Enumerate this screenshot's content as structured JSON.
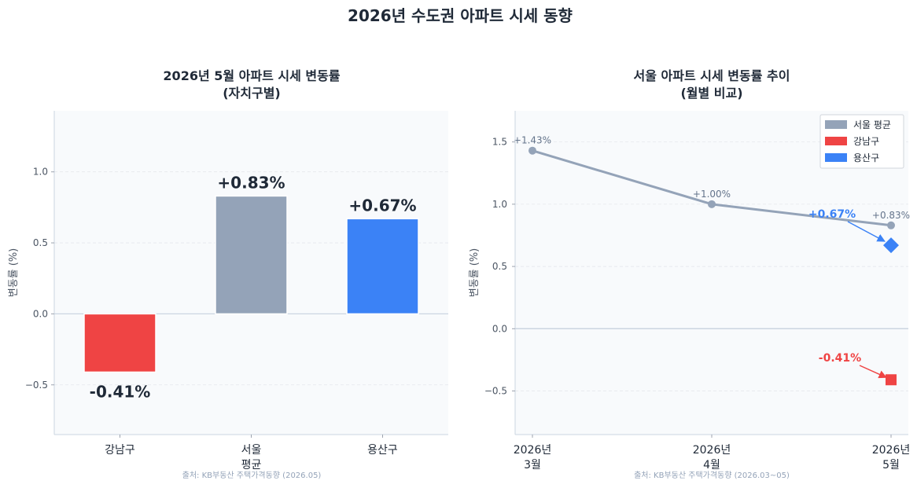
{
  "suptitle": "2026년 수도권 아파트 시세 동향",
  "charts": [
    {
      "type": "bar",
      "title": [
        "2026년 5월 아파트 시세 변동률",
        "(자치구별)"
      ],
      "ylabel": "변동률 (%)",
      "ylim": [
        -0.85,
        1.43
      ],
      "yticks": [
        -0.5,
        0.0,
        0.5,
        1.0
      ],
      "ytick_labels": [
        "−0.5",
        "0.0",
        "0.5",
        "1.0"
      ],
      "categories": [
        [
          "강남구"
        ],
        [
          "서울",
          "평균"
        ],
        [
          "용산구"
        ]
      ],
      "values": [
        -0.41,
        0.83,
        0.67
      ],
      "value_labels": [
        "-0.41%",
        "+0.83%",
        "+0.67%"
      ],
      "colors": [
        "#ef4444",
        "#94a3b8",
        "#3b82f6"
      ],
      "source": "출처: KB부동산 주택가격동향 (2026.05)"
    },
    {
      "type": "line",
      "title": [
        "서울 아파트 시세 변동률 추이",
        "(월별 비교)"
      ],
      "ylabel": "변동률 (%)",
      "ylim": [
        -0.85,
        1.75
      ],
      "yticks": [
        -0.5,
        0.0,
        0.5,
        1.0,
        1.5
      ],
      "ytick_labels": [
        "−0.5",
        "0.0",
        "0.5",
        "1.0",
        "1.5"
      ],
      "x": [
        [
          "2026년",
          "3월"
        ],
        [
          "2026년",
          "4월"
        ],
        [
          "2026년",
          "5월"
        ]
      ],
      "series": [
        {
          "name": "서울 평균",
          "values": [
            1.43,
            1.0,
            0.83
          ],
          "labels": [
            "+1.43%",
            "+1.00%",
            "+0.83%"
          ],
          "color": "#94a3b8",
          "marker": "circle"
        },
        {
          "name": "강남구",
          "values": [
            null,
            null,
            -0.41
          ],
          "annotation": "-0.41%",
          "color": "#ef4444",
          "marker": "square"
        },
        {
          "name": "용산구",
          "values": [
            null,
            null,
            0.67
          ],
          "annotation": "+0.67%",
          "color": "#3b82f6",
          "marker": "diamond"
        }
      ],
      "legend": "top-right",
      "source": "출처: KB부동산 주택가격동향 (2026.03~05)"
    }
  ]
}
